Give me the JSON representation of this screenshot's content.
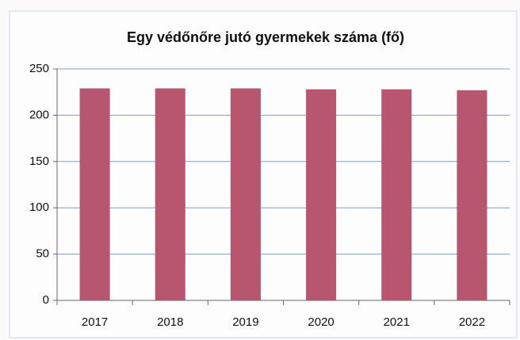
{
  "chart_data": {
    "type": "bar",
    "title": "Egy védőnőre jutó gyermekek száma (fő)",
    "categories": [
      "2017",
      "2018",
      "2019",
      "2020",
      "2021",
      "2022"
    ],
    "values": [
      229,
      229,
      229,
      228,
      228,
      227
    ],
    "color": "#b8566f",
    "ylim": [
      0,
      250
    ],
    "yticks": [
      0,
      50,
      100,
      150,
      200,
      250
    ],
    "grid": true
  }
}
